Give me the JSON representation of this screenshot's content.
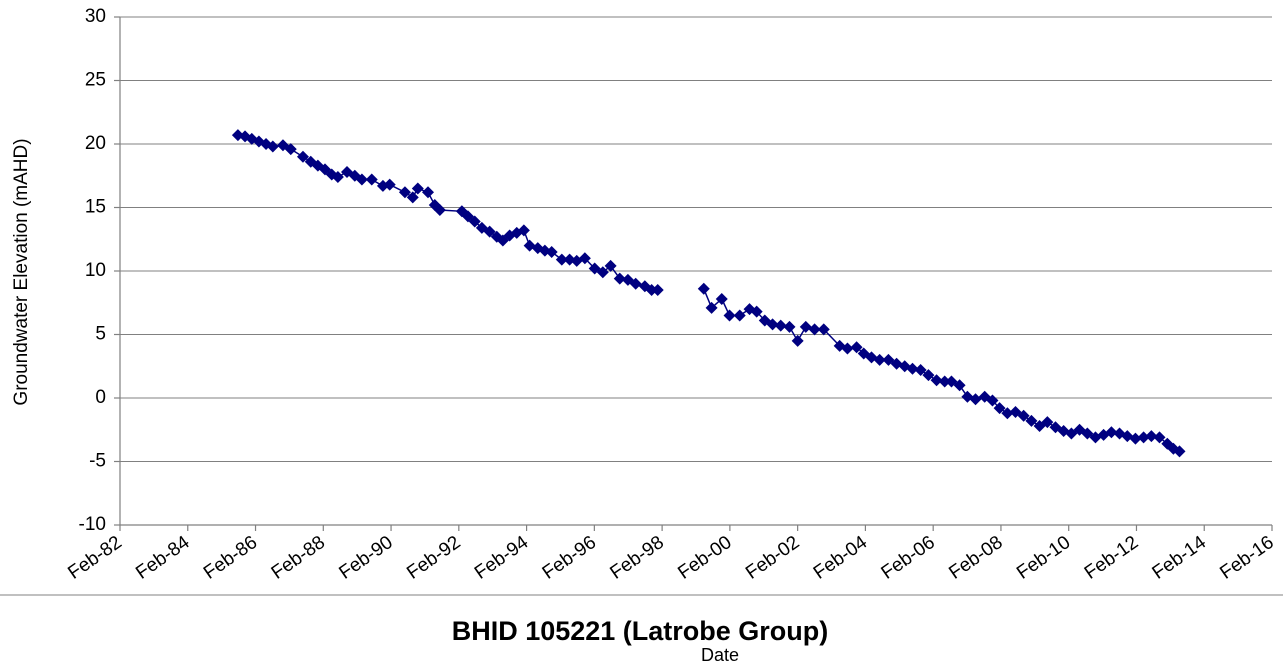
{
  "chart_data": {
    "type": "line",
    "title": "BHID 105221 (Latrobe Group)",
    "x_label": "Date",
    "y_label": "Groundwater Elevation  (mAHD)",
    "color": "#000080",
    "marker": "diamond",
    "grid": "y",
    "xlim": [
      1982.08,
      2016.08
    ],
    "xticks": [
      {
        "value": 1982.08,
        "label": "Feb-82"
      },
      {
        "value": 1984.08,
        "label": "Feb-84"
      },
      {
        "value": 1986.08,
        "label": "Feb-86"
      },
      {
        "value": 1988.08,
        "label": "Feb-88"
      },
      {
        "value": 1990.08,
        "label": "Feb-90"
      },
      {
        "value": 1992.08,
        "label": "Feb-92"
      },
      {
        "value": 1994.08,
        "label": "Feb-94"
      },
      {
        "value": 1996.08,
        "label": "Feb-96"
      },
      {
        "value": 1998.08,
        "label": "Feb-98"
      },
      {
        "value": 2000.08,
        "label": "Feb-00"
      },
      {
        "value": 2002.08,
        "label": "Feb-02"
      },
      {
        "value": 2004.08,
        "label": "Feb-04"
      },
      {
        "value": 2006.08,
        "label": "Feb-06"
      },
      {
        "value": 2008.08,
        "label": "Feb-08"
      },
      {
        "value": 2010.08,
        "label": "Feb-10"
      },
      {
        "value": 2012.08,
        "label": "Feb-12"
      },
      {
        "value": 2014.08,
        "label": "Feb-14"
      },
      {
        "value": 2016.08,
        "label": "Feb-16"
      }
    ],
    "ylim": [
      -10,
      30
    ],
    "yticks": [
      -10,
      -5,
      0,
      5,
      10,
      15,
      20,
      25,
      30
    ],
    "x": [
      1985.56,
      1985.77,
      1985.97,
      1986.18,
      1986.39,
      1986.59,
      1986.89,
      1987.12,
      1987.48,
      1987.71,
      1987.92,
      1988.13,
      1988.33,
      1988.51,
      1988.78,
      1989.01,
      1989.22,
      1989.51,
      1989.84,
      1990.04,
      1990.49,
      1990.72,
      1990.87,
      1991.17,
      1991.37,
      1991.52,
      1992.17,
      1992.35,
      1992.55,
      1992.76,
      1992.99,
      1993.2,
      1993.38,
      1993.58,
      1993.79,
      1994.0,
      1994.17,
      1994.41,
      1994.62,
      1994.82,
      1995.12,
      1995.35,
      1995.56,
      1995.8,
      1996.09,
      1996.33,
      1996.56,
      1996.83,
      1997.07,
      1997.3,
      1997.57,
      1997.77,
      1997.95,
      null,
      1999.31,
      1999.54,
      1999.84,
      2000.07,
      2000.37,
      2000.66,
      2000.87,
      2001.11,
      2001.34,
      2001.58,
      2001.84,
      2002.08,
      2002.32,
      2002.58,
      2002.85,
      2003.32,
      2003.55,
      2003.82,
      2004.03,
      2004.26,
      2004.5,
      2004.76,
      2005.0,
      2005.24,
      2005.47,
      2005.71,
      2005.94,
      2006.18,
      2006.42,
      2006.62,
      2006.86,
      2007.09,
      2007.33,
      2007.6,
      2007.83,
      2008.04,
      2008.27,
      2008.51,
      2008.75,
      2008.98,
      2009.22,
      2009.45,
      2009.69,
      2009.93,
      2010.16,
      2010.4,
      2010.63,
      2010.87,
      2011.11,
      2011.34,
      2011.58,
      2011.81,
      2012.05,
      2012.29,
      2012.52,
      2012.76,
      2012.99,
      2013.17,
      2013.35
    ],
    "values": [
      20.7,
      20.6,
      20.4,
      20.2,
      20.0,
      19.8,
      19.9,
      19.6,
      19.0,
      18.6,
      18.3,
      18.0,
      17.6,
      17.4,
      17.8,
      17.5,
      17.2,
      17.2,
      16.7,
      16.8,
      16.2,
      15.8,
      16.5,
      16.2,
      15.2,
      14.8,
      14.7,
      14.3,
      13.9,
      13.4,
      13.1,
      12.7,
      12.4,
      12.8,
      13.0,
      13.2,
      12.0,
      11.8,
      11.6,
      11.5,
      10.9,
      10.9,
      10.8,
      11.0,
      10.2,
      9.9,
      10.4,
      9.4,
      9.3,
      9.0,
      8.8,
      8.5,
      8.5,
      null,
      8.6,
      7.1,
      7.8,
      6.5,
      6.5,
      7.0,
      6.8,
      6.1,
      5.8,
      5.7,
      5.6,
      4.5,
      5.6,
      5.4,
      5.4,
      4.1,
      3.9,
      4.0,
      3.5,
      3.2,
      3.0,
      3.0,
      2.7,
      2.5,
      2.3,
      2.2,
      1.8,
      1.4,
      1.3,
      1.3,
      1.0,
      0.1,
      -0.1,
      0.1,
      -0.2,
      -0.8,
      -1.2,
      -1.1,
      -1.4,
      -1.8,
      -2.2,
      -1.9,
      -2.3,
      -2.6,
      -2.8,
      -2.5,
      -2.8,
      -3.1,
      -2.9,
      -2.7,
      -2.8,
      -3.0,
      -3.2,
      -3.1,
      -3.0,
      -3.1,
      -3.6,
      -4.0,
      -4.2
    ]
  }
}
